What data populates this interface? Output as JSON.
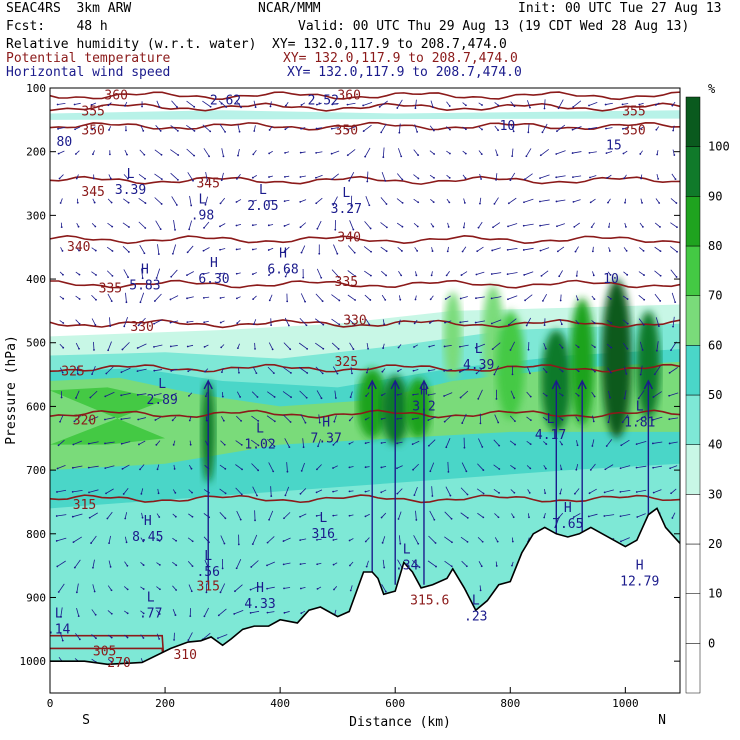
{
  "header": {
    "model": "SEAC4RS  3km ARW",
    "org": "NCAR/MMM",
    "init": "Init: 00 UTC Tue 27 Aug 13",
    "fcst": "Fcst:    48 h",
    "valid": "Valid: 00 UTC Thu 29 Aug 13 (19 CDT Wed 28 Aug 13)",
    "fields": [
      {
        "name": "Relative humidity (w.r.t. water)",
        "xy": "XY= 132.0,117.9 to 208.7,474.0",
        "color": "#000000"
      },
      {
        "name": "Potential temperature",
        "xy": "XY= 132.0,117.9 to 208.7,474.0",
        "color": "#8b1a1a"
      },
      {
        "name": "Horizontal wind speed",
        "xy": "XY= 132.0,117.9 to 208.7,474.0",
        "color": "#1b1b8c"
      }
    ]
  },
  "chart_data": {
    "type": "heatmap",
    "xlabel": "Distance (km)",
    "ylabel": "Pressure (hPa)",
    "xlim": [
      0,
      1095
    ],
    "ylim": [
      1050,
      100
    ],
    "x_ticks": [
      0,
      200,
      400,
      600,
      800,
      1000
    ],
    "y_ticks": [
      100,
      200,
      300,
      400,
      500,
      600,
      700,
      800,
      900,
      1000
    ],
    "x_end_labels": {
      "left": "S",
      "right": "N"
    },
    "colorbar": {
      "unit": "%",
      "levels": [
        0,
        10,
        20,
        30,
        40,
        50,
        60,
        70,
        80,
        90,
        100
      ],
      "colors": [
        "#ffffff",
        "#ffffff",
        "#ffffff",
        "#ffffff",
        "#c8f7e6",
        "#7ee8d6",
        "#4ad6c8",
        "#7adb7a",
        "#44c944",
        "#1fa31f",
        "#107a2a",
        "#0a5a1e"
      ]
    },
    "theta_contours": [
      {
        "label": "360",
        "p": 112
      },
      {
        "label": "355",
        "p": 130
      },
      {
        "label": "350",
        "p": 160
      },
      {
        "label": "345",
        "p": 245
      },
      {
        "label": "340",
        "p": 338
      },
      {
        "label": "335",
        "p": 408
      },
      {
        "label": "330",
        "p": 470
      },
      {
        "label": "325",
        "p": 540
      },
      {
        "label": "320",
        "p": 612
      },
      {
        "label": "315",
        "p": 745
      },
      {
        "label": "310",
        "p": 960
      },
      {
        "label": "305",
        "p": 980
      }
    ],
    "theta_labels": [
      {
        "text": "360",
        "x": 115,
        "p": 112
      },
      {
        "text": "360",
        "x": 520,
        "p": 112
      },
      {
        "text": "355",
        "x": 75,
        "p": 137
      },
      {
        "text": "355",
        "x": 1015,
        "p": 137
      },
      {
        "text": "350",
        "x": 75,
        "p": 167
      },
      {
        "text": "350",
        "x": 515,
        "p": 167
      },
      {
        "text": "350",
        "x": 1015,
        "p": 167
      },
      {
        "text": "345",
        "x": 75,
        "p": 263
      },
      {
        "text": "345",
        "x": 275,
        "p": 250
      },
      {
        "text": "340",
        "x": 50,
        "p": 350
      },
      {
        "text": "340",
        "x": 520,
        "p": 335
      },
      {
        "text": "335",
        "x": 105,
        "p": 415
      },
      {
        "text": "335",
        "x": 515,
        "p": 405
      },
      {
        "text": "330",
        "x": 160,
        "p": 475
      },
      {
        "text": "330",
        "x": 530,
        "p": 465
      },
      {
        "text": "325",
        "x": 40,
        "p": 545
      },
      {
        "text": "325",
        "x": 515,
        "p": 530
      },
      {
        "text": "320",
        "x": 60,
        "p": 622
      },
      {
        "text": "315",
        "x": 60,
        "p": 755
      },
      {
        "text": "315",
        "x": 275,
        "p": 883
      },
      {
        "text": "315.6",
        "x": 660,
        "p": 905
      },
      {
        "text": "310",
        "x": 235,
        "p": 990
      },
      {
        "text": "305",
        "x": 95,
        "p": 985
      },
      {
        "text": "270",
        "x": 120,
        "p": 1003
      }
    ],
    "wind_extrema": [
      {
        "type": "L",
        "value": "2.62",
        "x": 305,
        "p": 120
      },
      {
        "type": "L",
        "value": "2.52",
        "x": 475,
        "p": 120
      },
      {
        "type": "L",
        "value": "3.39",
        "x": 140,
        "p": 260
      },
      {
        "type": "L",
        "value": ".98",
        "x": 265,
        "p": 300
      },
      {
        "type": "L",
        "value": "2.05",
        "x": 370,
        "p": 285
      },
      {
        "type": "L",
        "value": "3.27",
        "x": 515,
        "p": 290
      },
      {
        "type": "H",
        "value": "5.83",
        "x": 165,
        "p": 410
      },
      {
        "type": "H",
        "value": "6.30",
        "x": 285,
        "p": 400
      },
      {
        "type": "H",
        "value": "6.68",
        "x": 405,
        "p": 385
      },
      {
        "type": "L",
        "value": "4.39",
        "x": 745,
        "p": 535
      },
      {
        "type": "L",
        "value": "2.89",
        "x": 195,
        "p": 590
      },
      {
        "type": "H",
        "value": "3.2",
        "x": 650,
        "p": 600
      },
      {
        "type": "L",
        "value": "1.02",
        "x": 365,
        "p": 660
      },
      {
        "type": "H",
        "value": "7.37",
        "x": 480,
        "p": 650
      },
      {
        "type": "L",
        "value": "4.17",
        "x": 870,
        "p": 645
      },
      {
        "type": "L",
        "value": "1.81",
        "x": 1025,
        "p": 625
      },
      {
        "type": "H",
        "value": "8.45",
        "x": 170,
        "p": 805
      },
      {
        "type": "L",
        "value": "316",
        "x": 475,
        "p": 800
      },
      {
        "type": "H",
        "value": "7.65",
        "x": 900,
        "p": 785
      },
      {
        "type": "L",
        "value": ".56",
        "x": 275,
        "p": 860
      },
      {
        "type": "L",
        "value": ".34",
        "x": 620,
        "p": 850
      },
      {
        "type": "H",
        "value": "12.79",
        "x": 1025,
        "p": 875
      },
      {
        "type": "H",
        "value": "4.33",
        "x": 365,
        "p": 910
      },
      {
        "type": "L",
        "value": ".77",
        "x": 175,
        "p": 925
      },
      {
        "type": "L",
        "value": ".23",
        "x": 740,
        "p": 930
      },
      {
        "type": "L",
        "value": ".14",
        "x": 15,
        "p": 950
      },
      {
        "type": "",
        "value": "10",
        "x": 795,
        "p": 160
      },
      {
        "type": "",
        "value": "15",
        "x": 980,
        "p": 190
      },
      {
        "type": "",
        "value": "10",
        "x": 975,
        "p": 400
      },
      {
        "type": "",
        "value": "80",
        "x": 25,
        "p": 185
      }
    ],
    "terrain": [
      [
        0,
        1000
      ],
      [
        30,
        1000
      ],
      [
        60,
        1000
      ],
      [
        100,
        1005
      ],
      [
        160,
        1002
      ],
      [
        210,
        980
      ],
      [
        240,
        970
      ],
      [
        262,
        968
      ],
      [
        280,
        962
      ],
      [
        300,
        975
      ],
      [
        315,
        965
      ],
      [
        335,
        950
      ],
      [
        355,
        945
      ],
      [
        380,
        945
      ],
      [
        400,
        935
      ],
      [
        430,
        940
      ],
      [
        450,
        920
      ],
      [
        470,
        915
      ],
      [
        500,
        930
      ],
      [
        520,
        922
      ],
      [
        545,
        860
      ],
      [
        560,
        860
      ],
      [
        570,
        870
      ],
      [
        580,
        895
      ],
      [
        600,
        890
      ],
      [
        615,
        845
      ],
      [
        630,
        860
      ],
      [
        645,
        885
      ],
      [
        665,
        880
      ],
      [
        690,
        870
      ],
      [
        700,
        855
      ],
      [
        720,
        885
      ],
      [
        740,
        920
      ],
      [
        760,
        905
      ],
      [
        780,
        880
      ],
      [
        800,
        875
      ],
      [
        820,
        830
      ],
      [
        840,
        800
      ],
      [
        860,
        790
      ],
      [
        880,
        800
      ],
      [
        900,
        805
      ],
      [
        920,
        800
      ],
      [
        940,
        790
      ],
      [
        960,
        800
      ],
      [
        980,
        810
      ],
      [
        1000,
        820
      ],
      [
        1020,
        810
      ],
      [
        1040,
        770
      ],
      [
        1055,
        760
      ],
      [
        1070,
        790
      ],
      [
        1090,
        810
      ],
      [
        1095,
        815
      ]
    ]
  }
}
